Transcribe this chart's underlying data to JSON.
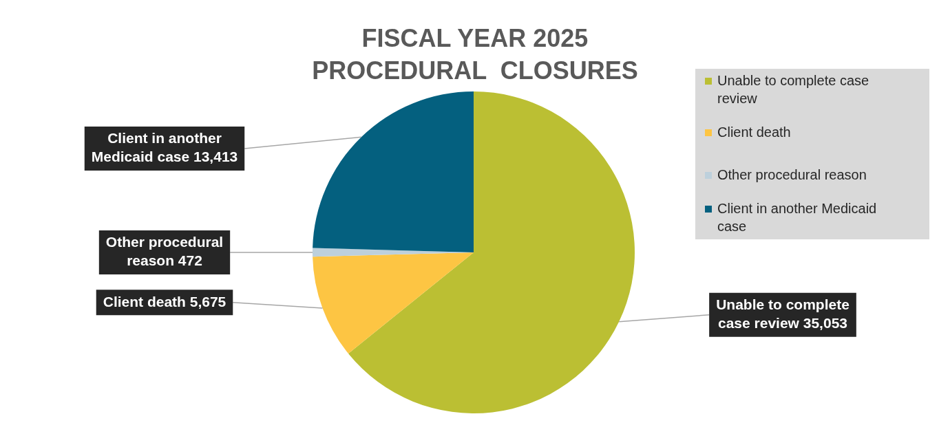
{
  "chart_data": {
    "type": "pie",
    "title": "FISCAL YEAR 2025\nPROCEDURAL  CLOSURES",
    "categories": [
      "Unable to complete case review",
      "Client death",
      "Other procedural reason",
      "Client in another Medicaid case"
    ],
    "values": [
      35053,
      5675,
      472,
      13413
    ],
    "colors": [
      "#bbbf33",
      "#fdc543",
      "#bdd0dc",
      "#04607f"
    ],
    "value_labels": [
      "35,053",
      "5,675",
      "472",
      "13,413"
    ],
    "legend": "top right"
  }
}
